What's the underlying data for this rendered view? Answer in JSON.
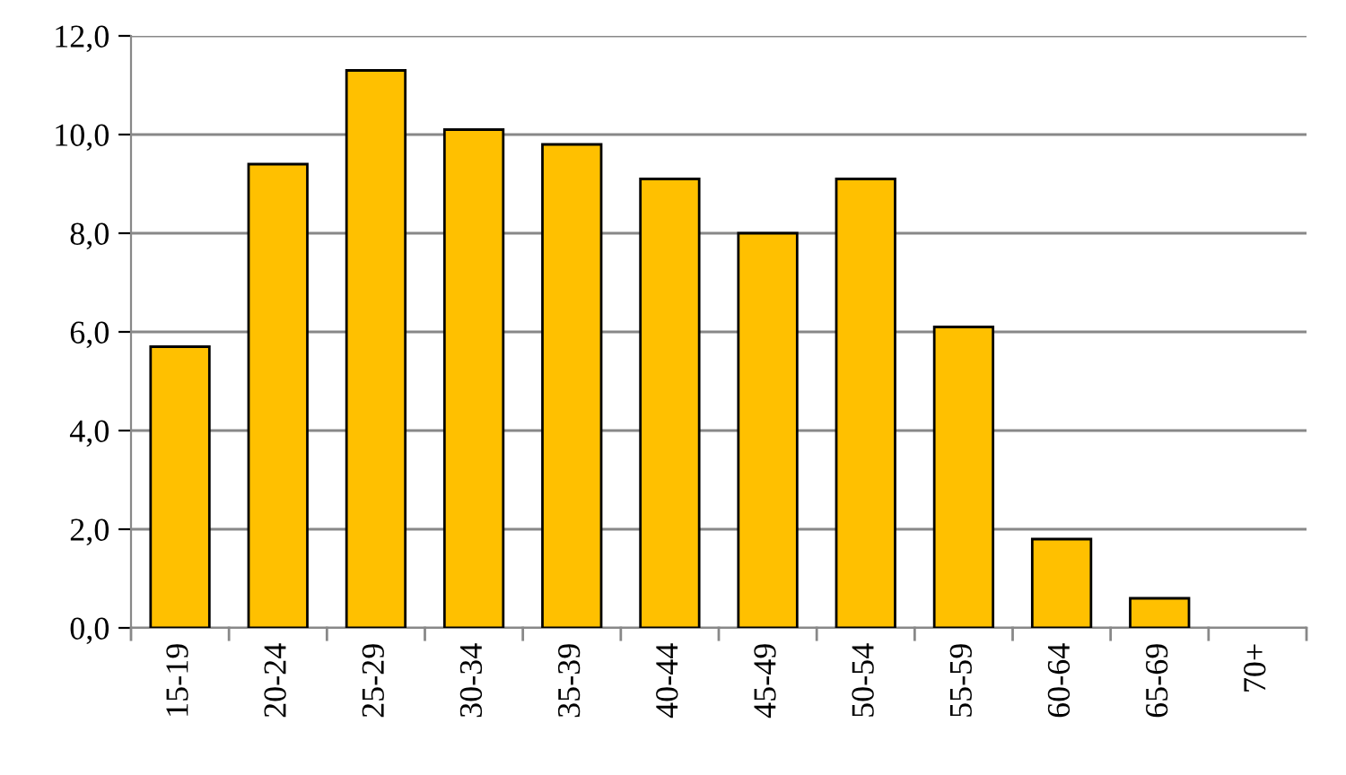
{
  "chart_data": {
    "type": "bar",
    "categories": [
      "15-19",
      "20-24",
      "25-29",
      "30-34",
      "35-39",
      "40-44",
      "45-49",
      "50-54",
      "55-59",
      "60-64",
      "65-69",
      "70+"
    ],
    "values": [
      5.7,
      9.4,
      11.3,
      10.1,
      9.8,
      9.1,
      8.0,
      9.1,
      6.1,
      1.8,
      0.6,
      null
    ],
    "color": "#ffc000",
    "ylim": [
      0,
      12
    ],
    "yticks": [
      {
        "value": 0,
        "label": "0,0"
      },
      {
        "value": 2,
        "label": "2,0"
      },
      {
        "value": 4,
        "label": "4,0"
      },
      {
        "value": 6,
        "label": "6,0"
      },
      {
        "value": 8,
        "label": "8,0"
      },
      {
        "value": 10,
        "label": "10,0"
      },
      {
        "value": 12,
        "label": "12,0"
      }
    ],
    "grid": "y"
  }
}
